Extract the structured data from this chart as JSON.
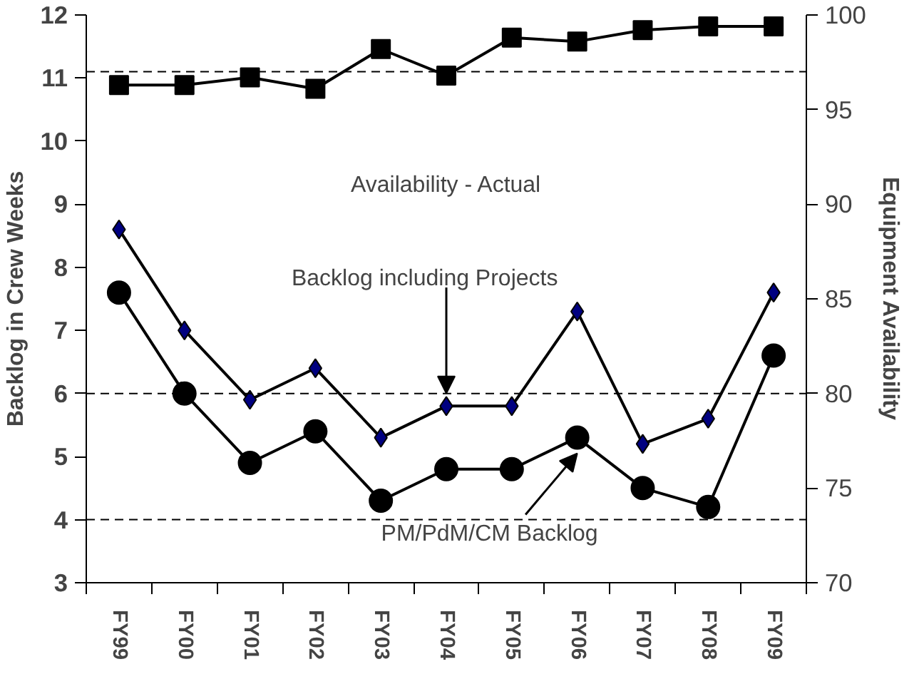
{
  "chart_data": {
    "type": "line",
    "categories": [
      "FY99",
      "FY00",
      "FY01",
      "FY02",
      "FY03",
      "FY04",
      "FY05",
      "FY06",
      "FY07",
      "FY08",
      "FY09"
    ],
    "ylabel": "Backlog in Crew Weeks",
    "y2label": "Equipment Availability",
    "ylim": [
      3,
      12
    ],
    "yticks": [
      3,
      4,
      5,
      6,
      7,
      8,
      9,
      10,
      11,
      12
    ],
    "y2lim": [
      70,
      100
    ],
    "y2ticks": [
      70,
      75,
      80,
      85,
      90,
      95,
      100
    ],
    "series": [
      {
        "color": "#000000",
        "marker": "square",
        "axis": "y2",
        "values": [
          96.3,
          96.3,
          96.7,
          96.1,
          98.2,
          96.8,
          98.8,
          98.6,
          99.2,
          99.4,
          99.4
        ]
      },
      {
        "color": "#000080",
        "marker": "diamond",
        "values": [
          8.6,
          7.0,
          5.9,
          6.4,
          5.3,
          5.8,
          5.8,
          7.3,
          5.2,
          5.6,
          7.6
        ]
      },
      {
        "color": "#000000",
        "marker": "circle",
        "values": [
          7.6,
          6.0,
          4.9,
          5.4,
          4.3,
          4.8,
          4.8,
          5.3,
          4.5,
          4.2,
          6.6
        ]
      }
    ],
    "ref_lines": [
      {
        "axis": "y2",
        "value": 97,
        "line_style": "dashed",
        "color": "#000000"
      },
      {
        "axis": "y",
        "value": 6,
        "line_style": "dashed",
        "color": "#000000"
      },
      {
        "axis": "y",
        "value": 4,
        "line_style": "dashed",
        "color": "#000000"
      }
    ],
    "annotations": [
      "Availability - Actual",
      {
        "text": "Backlog including Projects",
        "x": "FY04",
        "y": 6.0
      },
      {
        "text": "PM/PdM/CM Backlog",
        "x": "FY06",
        "y": 5.05
      }
    ],
    "grid": false
  }
}
